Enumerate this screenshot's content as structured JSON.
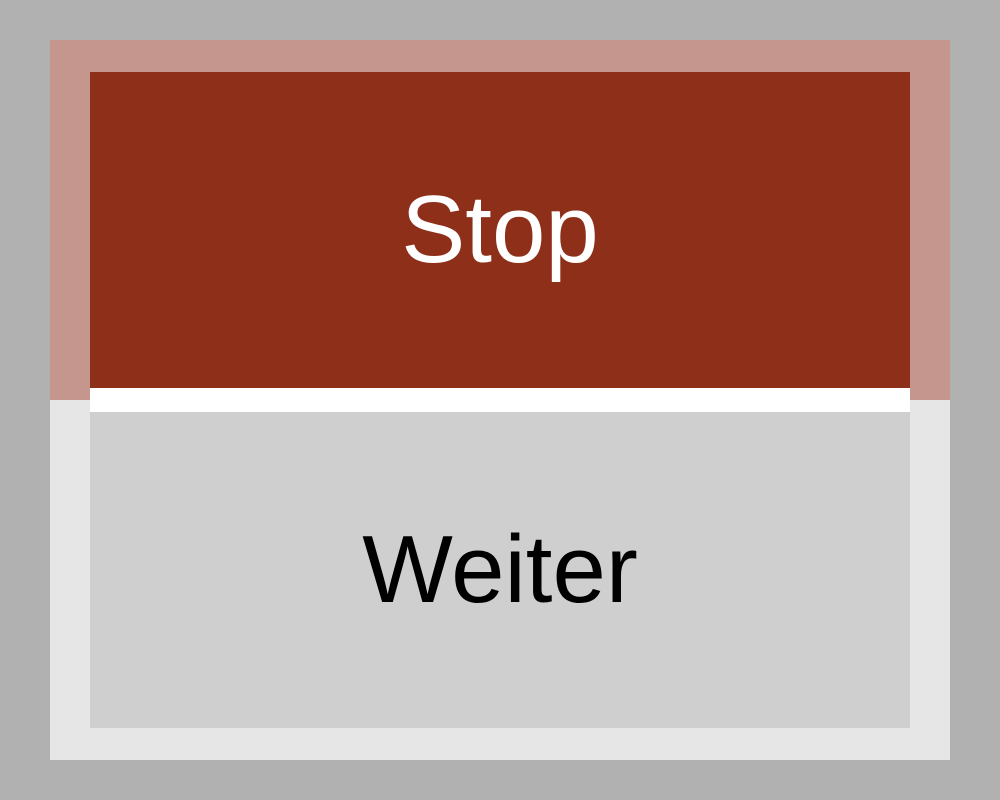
{
  "buttons": {
    "stop_label": "Stop",
    "continue_label": "Weiter"
  },
  "colors": {
    "background": "#b1b1b1",
    "panel": "#e6e6e6",
    "panel_top_tint": "#c4968d",
    "stop_button": "#8e2f1a",
    "stop_text": "#ffffff",
    "divider": "#ffffff",
    "continue_button": "#cfcfcf",
    "continue_text": "#000000"
  }
}
